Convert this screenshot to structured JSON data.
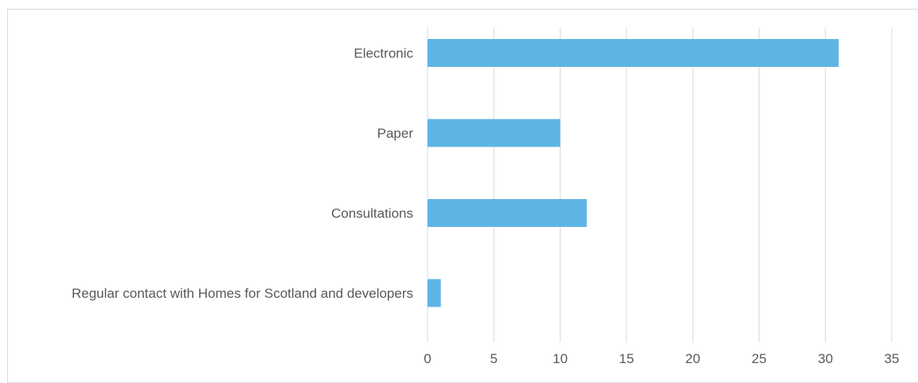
{
  "chart_data": {
    "type": "bar",
    "orientation": "horizontal",
    "categories": [
      "Electronic",
      "Paper",
      "Consultations",
      "Regular contact with Homes for Scotland and developers"
    ],
    "values": [
      31,
      10,
      12,
      1
    ],
    "xlim": [
      0,
      35
    ],
    "xticks": [
      "0",
      "5",
      "10",
      "15",
      "20",
      "25",
      "30",
      "35"
    ],
    "grid": true,
    "legend": "none",
    "bar_color": "#5eb5e3"
  }
}
